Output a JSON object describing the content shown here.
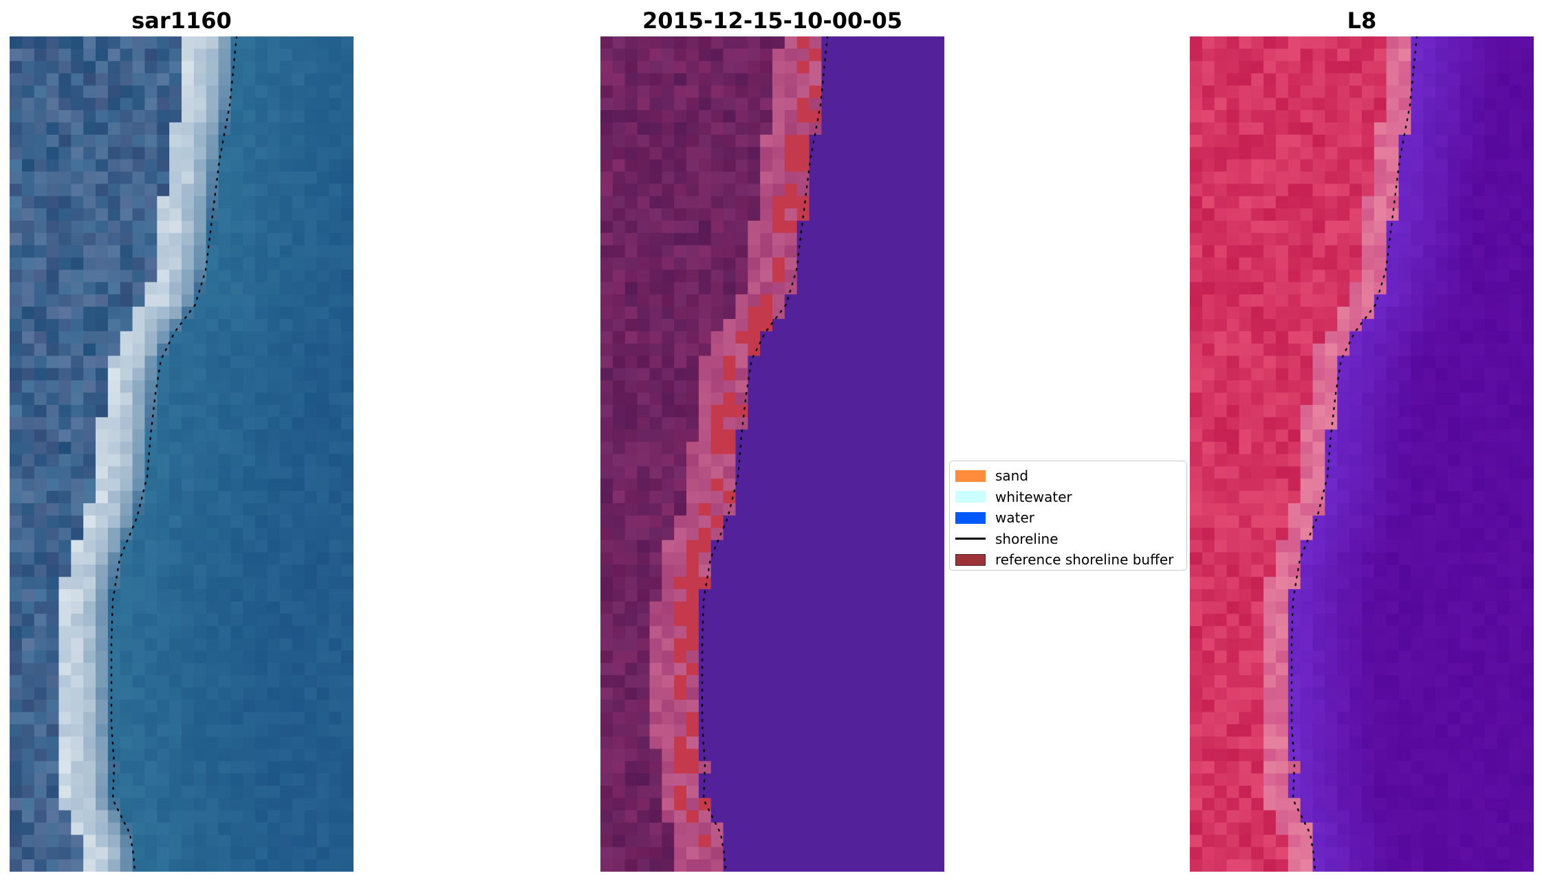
{
  "panels": [
    {
      "id": "rgb",
      "title": "sar1160"
    },
    {
      "id": "classified",
      "title": "2015-12-15-10-00-05"
    },
    {
      "id": "index",
      "title": "L8"
    }
  ],
  "legend": {
    "items": [
      {
        "label": "sand",
        "color": "#ff8c3c",
        "kind": "patch"
      },
      {
        "label": "whitewater",
        "color": "#ccffff",
        "kind": "patch"
      },
      {
        "label": "water",
        "color": "#0059ff",
        "kind": "patch"
      },
      {
        "label": "shoreline",
        "color": "#000000",
        "kind": "line"
      },
      {
        "label": "reference shoreline buffer",
        "color": "#9c3338",
        "kind": "patch-outlined"
      }
    ]
  },
  "colors": {
    "ocean_rgb": "#2d6492",
    "land_rgb": "#3e6a92",
    "surf_rgb": "#c8d8e6",
    "land_classified": "#6e2463",
    "water_classified": "#53229a",
    "buffer_classified": "#c83a4c",
    "land_index": "#d43462",
    "water_index": "#5b0ba0"
  }
}
